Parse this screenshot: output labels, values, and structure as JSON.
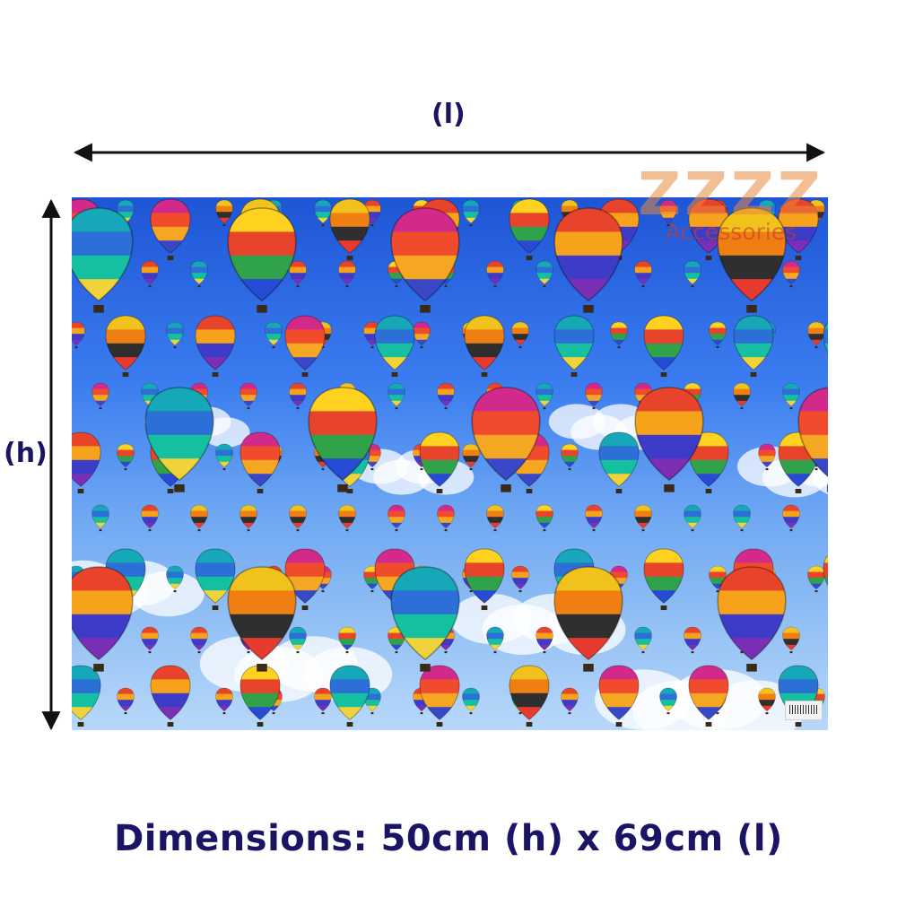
{
  "labels": {
    "length": "(l)",
    "height": "(h)"
  },
  "caption": "Dimensions: 50cm (h) x 69cm (l)",
  "watermark": {
    "brand": "ZZZZ",
    "subtitle": "Accessories"
  },
  "colors": {
    "label_text": "#1b1464",
    "arrow": "#111111",
    "watermark": "#e8883c"
  },
  "product": {
    "description_icon": "hot-air-balloon-pattern"
  }
}
